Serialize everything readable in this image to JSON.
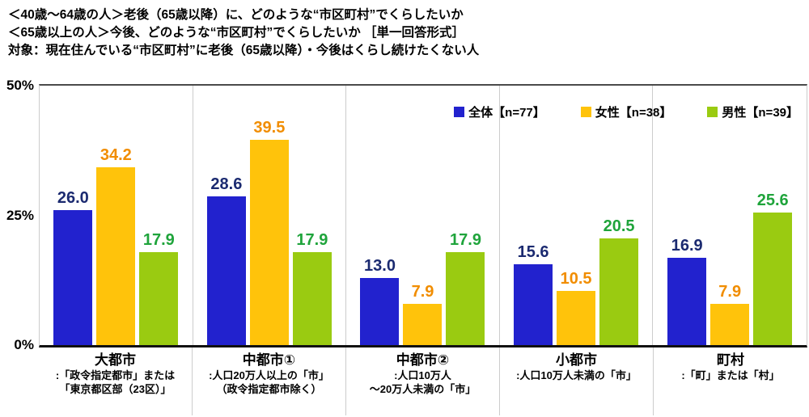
{
  "title": {
    "line1": "＜40歳～64歳の人＞老後（65歳以降）に、どのような“市区町村”でくらしたいか",
    "line2": "＜65歳以上の人＞今後、どのような“市区町村”でくらしたいか ［単一回答形式］",
    "line3": "対象：現在住んでいる“市区町村”に老後（65歳以降）・今後はくらし続けたくない人"
  },
  "chart_data": {
    "type": "bar",
    "categories": [
      {
        "name": "大都市",
        "desc": [
          ":「政令指定都市」または",
          "「東京都区部（23区）」"
        ]
      },
      {
        "name": "中都市①",
        "desc": [
          ":人口20万人以上の「市」",
          "（政令指定都市除く）"
        ]
      },
      {
        "name": "中都市②",
        "desc": [
          ":人口10万人",
          "～20万人未満の「市」"
        ]
      },
      {
        "name": "小都市",
        "desc": [
          ":人口10万人未満の「市」"
        ]
      },
      {
        "name": "町村",
        "desc": [
          ":「町」または「村」"
        ]
      }
    ],
    "series": [
      {
        "name": "全体【n=77】",
        "color": "#2222CE",
        "label_color": "#1B2A70",
        "values": [
          26.0,
          28.6,
          13.0,
          15.6,
          16.9
        ]
      },
      {
        "name": "女性【n=38】",
        "color": "#FFC30B",
        "label_color": "#F18D00",
        "values": [
          34.2,
          39.5,
          7.9,
          10.5,
          7.9
        ]
      },
      {
        "name": "男性【n=39】",
        "color": "#9ACB11",
        "label_color": "#1FA43B",
        "values": [
          17.9,
          17.9,
          17.9,
          20.5,
          25.6
        ]
      }
    ],
    "ylim": [
      0,
      50
    ],
    "yticks": [
      {
        "value": 0,
        "label": "0%"
      },
      {
        "value": 25,
        "label": "25%"
      },
      {
        "value": 50,
        "label": "50%"
      }
    ],
    "value_decimals": 1,
    "grid": false,
    "legend_position": "top-right-inside"
  }
}
